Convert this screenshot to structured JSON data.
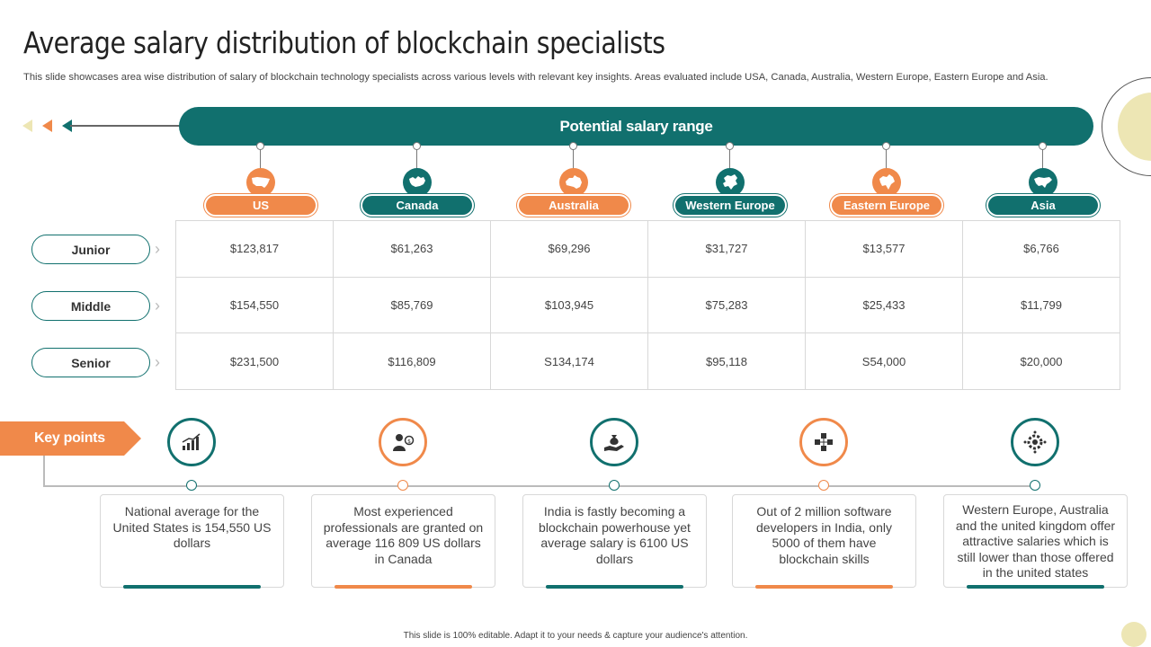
{
  "title": "Average salary distribution of blockchain specialists",
  "subtitle": "This slide showcases area wise distribution of salary of blockchain technology specialists across various levels with relevant key insights. Areas evaluated include USA, Canada, Australia, Western Europe, Eastern Europe and Asia.",
  "banner": "Potential salary range",
  "colors": {
    "teal": "#11706e",
    "orange": "#f0894a",
    "cream": "#ede6b4"
  },
  "regions": [
    {
      "name": "US",
      "icon": "usa-map-icon",
      "color": "orange"
    },
    {
      "name": "Canada",
      "icon": "canada-map-icon",
      "color": "teal"
    },
    {
      "name": "Australia",
      "icon": "australia-map-icon",
      "color": "orange"
    },
    {
      "name": "Western Europe",
      "icon": "europe-map-icon",
      "color": "teal"
    },
    {
      "name": "Eastern Europe",
      "icon": "eastern-europe-map-icon",
      "color": "orange"
    },
    {
      "name": "Asia",
      "icon": "asia-map-icon",
      "color": "teal"
    }
  ],
  "levels": [
    "Junior",
    "Middle",
    "Senior"
  ],
  "salaries": [
    [
      "$123,817",
      "$61,263",
      "$69,296",
      "$31,727",
      "$13,577",
      "$6,766"
    ],
    [
      "$154,550",
      "$85,769",
      "$103,945",
      "$75,283",
      "$25,433",
      "$11,799"
    ],
    [
      "$231,500",
      "$116,809",
      "S134,174",
      "$95,118",
      "S54,000",
      "$20,000"
    ]
  ],
  "key_points_label": "Key points",
  "key_points": [
    {
      "icon": "bar-chart-icon",
      "color": "teal",
      "text": "National average for the United States is 154,550 US dollars"
    },
    {
      "icon": "professional-person-icon",
      "color": "orange",
      "text": "Most experienced professionals are granted on average 116 809 US dollars in Canada"
    },
    {
      "icon": "money-bag-hand-icon",
      "color": "teal",
      "text": "India is fastly becoming a blockchain powerhouse yet average salary is 6100 US dollars"
    },
    {
      "icon": "blockchain-cubes-icon",
      "color": "orange",
      "text": "Out of 2 million software developers in India, only 5000 of them have blockchain skills"
    },
    {
      "icon": "gear-network-icon",
      "color": "teal",
      "text": "Western Europe, Australia and the united kingdom offer attractive salaries which is still lower than those offered in the united states"
    }
  ],
  "footer": "This slide is 100% editable.  Adapt it to your needs & capture your audience's attention."
}
